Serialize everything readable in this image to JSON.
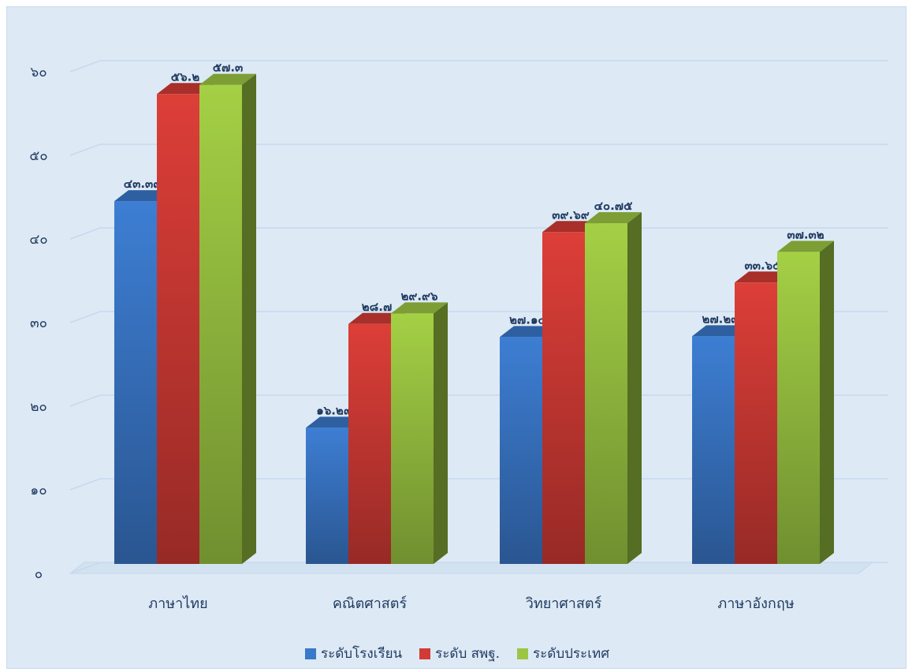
{
  "chart_data": {
    "type": "bar",
    "categories": [
      "ภาษาไทย",
      "คณิตศาสตร์",
      "วิทยาศาสตร์",
      "ภาษาอังกฤษ"
    ],
    "series": [
      {
        "name": "ระดับโรงเรียน",
        "values": [
          43.39,
          16.29,
          27.14,
          27.23
        ],
        "labels": [
          "๔๓.๓๙",
          "๑๖.๒๙",
          "๒๗.๑๔",
          "๒๗.๒๓"
        ],
        "color": "#3a78c9"
      },
      {
        "name": "ระดับ สพฐ.",
        "values": [
          56.2,
          28.7,
          39.69,
          33.65
        ],
        "labels": [
          "๕๖.๒",
          "๒๘.๗",
          "๓๙.๖๙",
          "๓๓.๖๕"
        ],
        "color": "#d23b35"
      },
      {
        "name": "ระดับประเทศ",
        "values": [
          57.3,
          29.96,
          40.75,
          37.32
        ],
        "labels": [
          "๕๗.๓",
          "๒๙.๙๖",
          "๔๐.๗๕",
          "๓๗.๓๒"
        ],
        "color": "#9cc642"
      }
    ],
    "yticks": [
      0,
      10,
      20,
      30,
      40,
      50,
      60
    ],
    "ytick_labels": [
      "๐",
      "๑๐",
      "๒๐",
      "๓๐",
      "๔๐",
      "๕๐",
      "๖๐"
    ],
    "ylim": [
      0,
      60
    ],
    "grid": true,
    "legend_position": "bottom"
  }
}
